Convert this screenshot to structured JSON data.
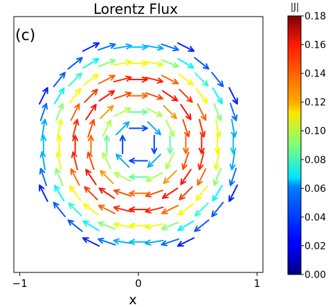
{
  "chart_data": {
    "type": "quiver",
    "title": "Lorentz Flux",
    "panel_label": "(c)",
    "xlabel": "x",
    "ylabel": "",
    "xlim": [
      -1.05,
      1.05
    ],
    "ylim": [
      -1.05,
      1.05
    ],
    "xticks": [
      -1,
      0,
      1
    ],
    "xtick_labels": [
      "−1",
      "0",
      "1"
    ],
    "grid": false,
    "field": {
      "description_keys": "magnitude |J| peaks on a ring and falls off toward center and rim",
      "grid_step": 0.1333,
      "max_radius": 0.92,
      "min_radius": 0.05,
      "peak_radius": 0.5,
      "peak_magnitude": 0.155,
      "rotation": "clockwise"
    },
    "colorbar": {
      "title": "|J|",
      "min": 0.0,
      "max": 0.18,
      "ticks": [
        0.0,
        0.02,
        0.04,
        0.06,
        0.08,
        0.1,
        0.12,
        0.14,
        0.16,
        0.18
      ],
      "tick_labels": [
        "0.00",
        "0.02",
        "0.04",
        "0.06",
        "0.08",
        "0.10",
        "0.12",
        "0.14",
        "0.16",
        "0.18"
      ],
      "colormap": "jet"
    }
  }
}
